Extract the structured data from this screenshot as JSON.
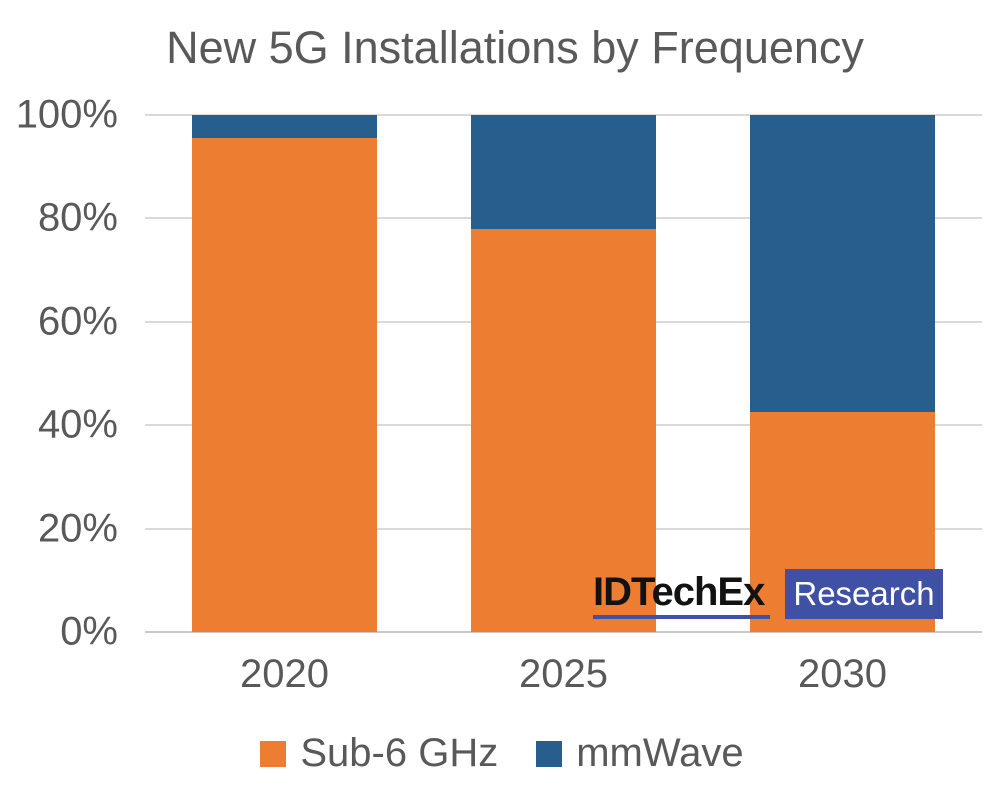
{
  "title": "New 5G Installations by Frequency",
  "colors": {
    "sub6_orange": "#ED7D31",
    "mmwave_blue": "#265F8D",
    "axis_text": "#595959",
    "gridline": "#D9D9D9",
    "logo_blue": "#3F51A5",
    "logo_text_black": "#121212"
  },
  "y_axis": {
    "ticks": [
      "100%",
      "80%",
      "60%",
      "40%",
      "20%",
      "0%"
    ]
  },
  "x_axis": {
    "categories": [
      "2020",
      "2025",
      "2030"
    ]
  },
  "legend": {
    "items": [
      {
        "label": "Sub-6 GHz",
        "color": "#ED7D31"
      },
      {
        "label": "mmWave",
        "color": "#265F8D"
      }
    ]
  },
  "logo": {
    "brand": "IDTechEx",
    "suffix": "Research"
  },
  "chart_data": {
    "type": "bar",
    "stacked": true,
    "stacked_unit": "percent",
    "title": "New 5G Installations by Frequency",
    "categories": [
      "2020",
      "2025",
      "2030"
    ],
    "series": [
      {
        "name": "Sub-6 GHz",
        "color": "#ED7D31",
        "values": [
          95.5,
          78,
          42.5
        ]
      },
      {
        "name": "mmWave",
        "color": "#265F8D",
        "values": [
          4.5,
          22,
          57.5
        ]
      }
    ],
    "xlabel": "",
    "ylabel": "",
    "ylim": [
      0,
      100
    ],
    "y_tick_step": 20,
    "y_tick_format": "percent",
    "grid": true,
    "legend_position": "bottom"
  }
}
